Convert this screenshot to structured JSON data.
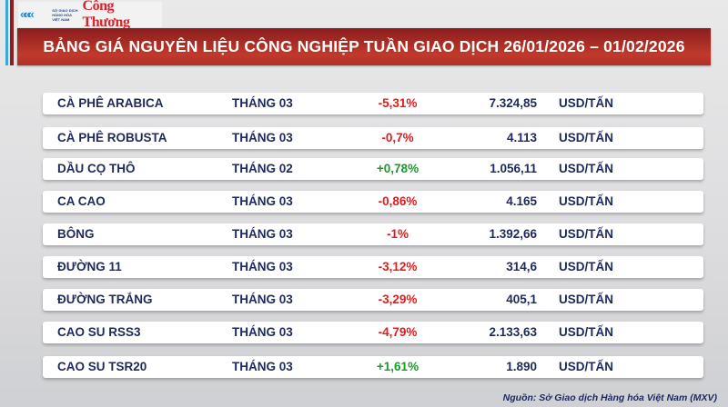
{
  "logo": {
    "org_text": "SỞ GIAO DỊCH HÀNG HÓA VIỆT NAM",
    "brand": "Công Thương"
  },
  "title": "BẢNG GIÁ NGUYÊN LIỆU CÔNG NGHIỆP TUẦN GIAO DỊCH 26/01/2026 – 01/02/2026",
  "colors": {
    "negative": "#e31b1b",
    "positive": "#1a9b2a",
    "banner": "#b2302a",
    "text": "#1c2a5c"
  },
  "rows": [
    {
      "name": "CÀ PHÊ ARABICA",
      "month": "THÁNG 03",
      "change": "-5,31%",
      "price": "7.324,85",
      "unit": "USD/TẤN",
      "trend": "neg"
    },
    {
      "name": "CÀ PHÊ ROBUSTA",
      "month": "THÁNG 03",
      "change": "-0,7%",
      "price": "4.113",
      "unit": "USD/TẤN",
      "trend": "neg"
    },
    {
      "name": "DẦU CỌ THÔ",
      "month": "THÁNG 02",
      "change": "+0,78%",
      "price": "1.056,11",
      "unit": "USD/TẤN",
      "trend": "pos"
    },
    {
      "name": "CA CAO",
      "month": "THÁNG 03",
      "change": "-0,86%",
      "price": "4.165",
      "unit": "USD/TẤN",
      "trend": "neg"
    },
    {
      "name": "BÔNG",
      "month": "THÁNG 03",
      "change": "-1%",
      "price": "1.392,66",
      "unit": "USD/TẤN",
      "trend": "neg"
    },
    {
      "name": "ĐƯỜNG 11",
      "month": "THÁNG 03",
      "change": "-3,12%",
      "price": "314,6",
      "unit": "USD/TẤN",
      "trend": "neg"
    },
    {
      "name": "ĐƯỜNG TRẮNG",
      "month": "THÁNG 03",
      "change": "-3,29%",
      "price": "405,1",
      "unit": "USD/TẤN",
      "trend": "neg"
    },
    {
      "name": "CAO SU RSS3",
      "month": "THÁNG 03",
      "change": "-4,79%",
      "price": "2.133,63",
      "unit": "USD/TẤN",
      "trend": "neg"
    },
    {
      "name": "CAO SU TSR20",
      "month": "THÁNG 03",
      "change": "+1,61%",
      "price": "1.890",
      "unit": "USD/TẤN",
      "trend": "pos"
    }
  ],
  "source": "Nguồn: Sở Giao dịch Hàng hóa Việt Nam (MXV)"
}
